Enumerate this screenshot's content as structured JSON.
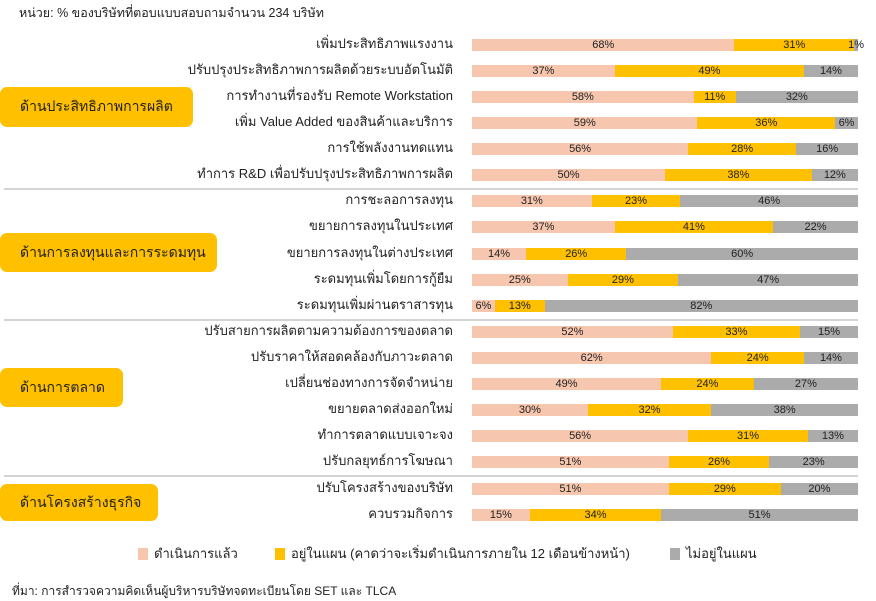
{
  "unit_note": "หน่วย: % ของบริษัทที่ตอบแบบสอบถามจำนวน 234 บริษัท",
  "source": "ที่มา: การสำรวจความคิดเห็นผู้บริหารบริษัทจดทะเบียนโดย SET และ TLCA",
  "colors": {
    "done": "#F6C6AE",
    "planned": "#FFC000",
    "not_planned": "#ABABAB"
  },
  "chart_data": {
    "type": "bar",
    "orientation": "horizontal-stacked-100",
    "title": "",
    "legend": [
      "ดำเนินการแล้ว",
      "อยู่ในแผน (คาดว่าจะเริ่มดำเนินการภายใน 12 เดือนข้างหน้า)",
      "ไม่อยู่ในแผน"
    ],
    "legend_position": "bottom",
    "groups": [
      {
        "name": "ด้านประสิทธิภาพการผลิต",
        "items": [
          {
            "label": "เพิ่มประสิทธิภาพแรงงาน",
            "values": [
              68,
              31,
              1
            ]
          },
          {
            "label": "ปรับปรุงประสิทธิภาพการผลิตด้วยระบบอัตโนมัติ",
            "values": [
              37,
              49,
              14
            ]
          },
          {
            "label": "การทำงานที่รองรับ Remote Workstation",
            "values": [
              58,
              11,
              32
            ]
          },
          {
            "label": "เพิ่ม Value Added ของสินค้าและบริการ",
            "values": [
              59,
              36,
              6
            ]
          },
          {
            "label": "การใช้พลังงานทดแทน",
            "values": [
              56,
              28,
              16
            ]
          },
          {
            "label": "ทำการ R&D เพื่อปรับปรุงประสิทธิภาพการผลิต",
            "values": [
              50,
              38,
              12
            ]
          }
        ]
      },
      {
        "name": "ด้านการลงทุนและการระดมทุน",
        "items": [
          {
            "label": "การชะลอการลงทุน",
            "values": [
              31,
              23,
              46
            ]
          },
          {
            "label": "ขยายการลงทุนในประเทศ",
            "values": [
              37,
              41,
              22
            ]
          },
          {
            "label": "ขยายการลงทุนในต่างประเทศ",
            "values": [
              14,
              26,
              60
            ]
          },
          {
            "label": "ระดมทุนเพิ่มโดยการกู้ยืม",
            "values": [
              25,
              29,
              47
            ]
          },
          {
            "label": "ระดมทุนเพิ่มผ่านตราสารทุน",
            "values": [
              6,
              13,
              82
            ]
          }
        ]
      },
      {
        "name": "ด้านการตลาด",
        "items": [
          {
            "label": "ปรับสายการผลิตตามความต้องการของตลาด",
            "values": [
              52,
              33,
              15
            ]
          },
          {
            "label": "ปรับราคาให้สอดคล้องกับภาวะตลาด",
            "values": [
              62,
              24,
              14
            ]
          },
          {
            "label": "เปลี่ยนช่องทางการจัดจำหน่าย",
            "values": [
              49,
              24,
              27
            ]
          },
          {
            "label": "ขยายตลาดส่งออกใหม่",
            "values": [
              30,
              32,
              38
            ]
          },
          {
            "label": "ทำการตลาดแบบเจาะจง",
            "values": [
              56,
              31,
              13
            ]
          },
          {
            "label": "ปรับกลยุทธ์การโฆษณา",
            "values": [
              51,
              26,
              23
            ]
          }
        ]
      },
      {
        "name": "ด้านโครงสร้างธุรกิจ",
        "items": [
          {
            "label": "ปรับโครงสร้างของบริษัท",
            "values": [
              51,
              29,
              20
            ]
          },
          {
            "label": "ควบรวมกิจการ",
            "values": [
              15,
              34,
              51
            ]
          }
        ]
      }
    ]
  }
}
